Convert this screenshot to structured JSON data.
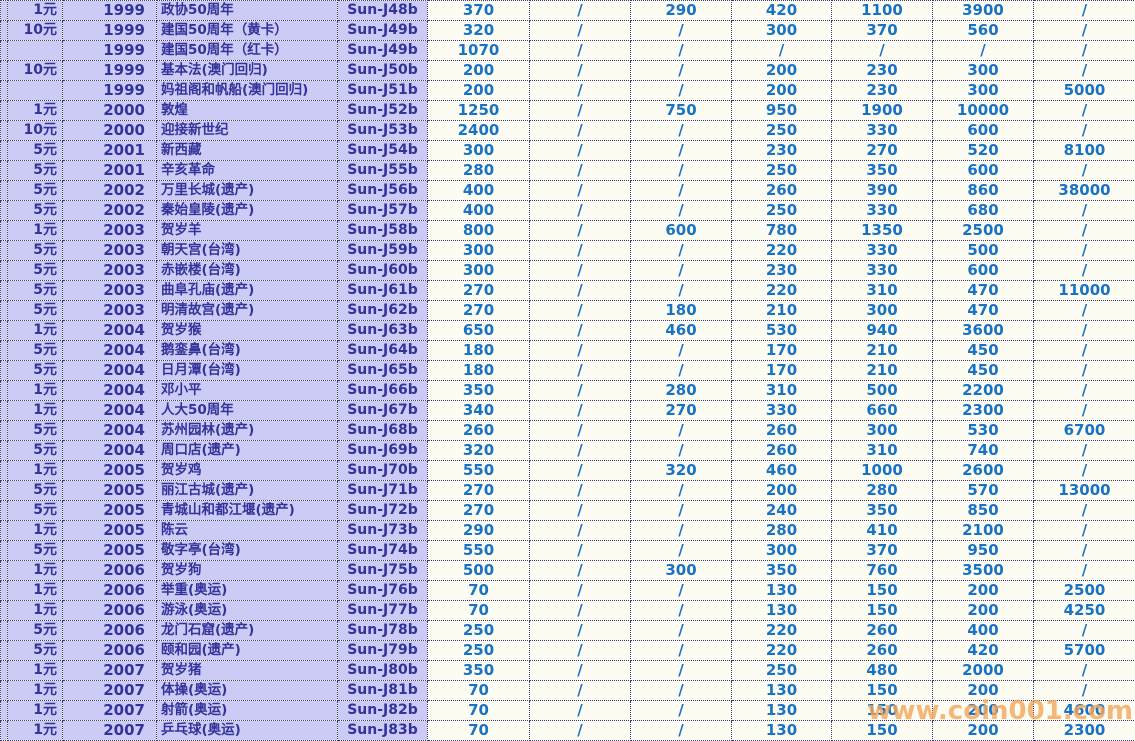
{
  "chart_data": {
    "type": "table",
    "rows": [
      [
        "1元",
        "1999",
        "政协50周年",
        "Sun-J48b",
        "370",
        "/",
        "290",
        "420",
        "1100",
        "3900",
        "/"
      ],
      [
        "10元",
        "1999",
        "建国50周年（黄卡）",
        "Sun-J49b",
        "320",
        "/",
        "/",
        "300",
        "370",
        "560",
        "/"
      ],
      [
        "",
        "1999",
        "建国50周年（红卡）",
        "Sun-J49b",
        "1070",
        "/",
        "/",
        "/",
        "/",
        "/",
        "/"
      ],
      [
        "10元",
        "1999",
        "基本法(澳门回归)",
        "Sun-J50b",
        "200",
        "/",
        "/",
        "200",
        "230",
        "300",
        "/"
      ],
      [
        "",
        "1999",
        "妈祖阁和帆船(澳门回归)",
        "Sun-J51b",
        "200",
        "/",
        "/",
        "200",
        "230",
        "300",
        "5000"
      ],
      [
        "1元",
        "2000",
        "敦煌",
        "Sun-J52b",
        "1250",
        "/",
        "750",
        "950",
        "1900",
        "10000",
        "/"
      ],
      [
        "10元",
        "2000",
        "迎接新世纪",
        "Sun-J53b",
        "2400",
        "/",
        "/",
        "250",
        "330",
        "600",
        "/"
      ],
      [
        "5元",
        "2001",
        "新西藏",
        "Sun-J54b",
        "300",
        "/",
        "/",
        "230",
        "270",
        "520",
        "8100"
      ],
      [
        "5元",
        "2001",
        "辛亥革命",
        "Sun-J55b",
        "280",
        "/",
        "/",
        "250",
        "350",
        "600",
        "/"
      ],
      [
        "5元",
        "2002",
        "万里长城(遗产)",
        "Sun-J56b",
        "400",
        "/",
        "/",
        "260",
        "390",
        "860",
        "38000"
      ],
      [
        "5元",
        "2002",
        "秦始皇陵(遗产)",
        "Sun-J57b",
        "400",
        "/",
        "/",
        "250",
        "330",
        "680",
        "/"
      ],
      [
        "1元",
        "2003",
        "贺岁羊",
        "Sun-J58b",
        "800",
        "/",
        "600",
        "780",
        "1350",
        "2500",
        "/"
      ],
      [
        "5元",
        "2003",
        "朝天宫(台湾)",
        "Sun-J59b",
        "300",
        "/",
        "/",
        "220",
        "330",
        "500",
        "/"
      ],
      [
        "5元",
        "2003",
        "赤嵌楼(台湾)",
        "Sun-J60b",
        "300",
        "/",
        "/",
        "230",
        "330",
        "600",
        "/"
      ],
      [
        "5元",
        "2003",
        "曲阜孔庙(遗产)",
        "Sun-J61b",
        "270",
        "/",
        "/",
        "220",
        "310",
        "470",
        "11000"
      ],
      [
        "5元",
        "2003",
        "明清故宫(遗产)",
        "Sun-J62b",
        "270",
        "/",
        "180",
        "210",
        "300",
        "470",
        "/"
      ],
      [
        "1元",
        "2004",
        "贺岁猴",
        "Sun-J63b",
        "650",
        "/",
        "460",
        "530",
        "940",
        "3600",
        "/"
      ],
      [
        "5元",
        "2004",
        "鹅銮鼻(台湾)",
        "Sun-J64b",
        "180",
        "/",
        "/",
        "170",
        "210",
        "450",
        "/"
      ],
      [
        "5元",
        "2004",
        "日月潭(台湾)",
        "Sun-J65b",
        "180",
        "/",
        "/",
        "170",
        "210",
        "450",
        "/"
      ],
      [
        "1元",
        "2004",
        "邓小平",
        "Sun-J66b",
        "350",
        "/",
        "280",
        "310",
        "500",
        "2200",
        "/"
      ],
      [
        "1元",
        "2004",
        "人大50周年",
        "Sun-J67b",
        "340",
        "/",
        "270",
        "330",
        "660",
        "2300",
        "/"
      ],
      [
        "5元",
        "2004",
        "苏州园林(遗产)",
        "Sun-J68b",
        "260",
        "/",
        "/",
        "260",
        "300",
        "530",
        "6700"
      ],
      [
        "5元",
        "2004",
        "周口店(遗产)",
        "Sun-J69b",
        "320",
        "/",
        "/",
        "260",
        "310",
        "740",
        "/"
      ],
      [
        "1元",
        "2005",
        "贺岁鸡",
        "Sun-J70b",
        "550",
        "/",
        "320",
        "460",
        "1000",
        "2600",
        "/"
      ],
      [
        "5元",
        "2005",
        "丽江古城(遗产)",
        "Sun-J71b",
        "270",
        "/",
        "/",
        "200",
        "280",
        "570",
        "13000"
      ],
      [
        "5元",
        "2005",
        "青城山和都江堰(遗产)",
        "Sun-J72b",
        "270",
        "/",
        "/",
        "240",
        "350",
        "850",
        "/"
      ],
      [
        "1元",
        "2005",
        "陈云",
        "Sun-J73b",
        "290",
        "/",
        "/",
        "280",
        "410",
        "2100",
        "/"
      ],
      [
        "5元",
        "2005",
        "敬字亭(台湾)",
        "Sun-J74b",
        "550",
        "/",
        "/",
        "300",
        "370",
        "950",
        "/"
      ],
      [
        "1元",
        "2006",
        "贺岁狗",
        "Sun-J75b",
        "500",
        "/",
        "300",
        "350",
        "760",
        "3500",
        "/"
      ],
      [
        "1元",
        "2006",
        "举重(奥运)",
        "Sun-J76b",
        "70",
        "/",
        "/",
        "130",
        "150",
        "200",
        "2500"
      ],
      [
        "1元",
        "2006",
        "游泳(奥运)",
        "Sun-J77b",
        "70",
        "/",
        "/",
        "130",
        "150",
        "200",
        "4250"
      ],
      [
        "5元",
        "2006",
        "龙门石窟(遗产)",
        "Sun-J78b",
        "250",
        "/",
        "/",
        "220",
        "260",
        "400",
        "/"
      ],
      [
        "5元",
        "2006",
        "颐和园(遗产)",
        "Sun-J79b",
        "250",
        "/",
        "/",
        "220",
        "260",
        "420",
        "5700"
      ],
      [
        "1元",
        "2007",
        "贺岁猪",
        "Sun-J80b",
        "350",
        "/",
        "/",
        "250",
        "480",
        "2000",
        "/"
      ],
      [
        "1元",
        "2007",
        "体操(奥运)",
        "Sun-J81b",
        "70",
        "/",
        "/",
        "130",
        "150",
        "200",
        "/"
      ],
      [
        "1元",
        "2007",
        "射箭(奥运)",
        "Sun-J82b",
        "70",
        "/",
        "/",
        "130",
        "150",
        "200",
        "4600"
      ],
      [
        "1元",
        "2007",
        "乒乓球(奥运)",
        "Sun-J83b",
        "70",
        "/",
        "/",
        "130",
        "150",
        "200",
        "2300"
      ]
    ]
  },
  "watermark": {
    "text": "www.coin001.com"
  },
  "colors": {
    "lavender": "#cccbf6",
    "cream": "#fdfcf2",
    "navy": "#333399",
    "blue": "#1973c4",
    "border": "#3a3a7a",
    "orange": "#f4a759"
  }
}
